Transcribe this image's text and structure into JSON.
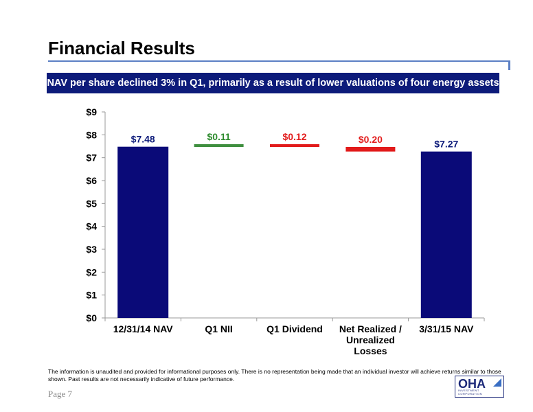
{
  "header": {
    "title": "Financial Results",
    "banner": "NAV per share declined 3% in Q1, primarily as a result of lower valuations of four energy assets"
  },
  "chart_data": {
    "type": "bar",
    "subtype": "waterfall",
    "categories": [
      "12/31/14 NAV",
      "Q1 NII",
      "Q1 Dividend",
      "Net Realized / Unrealized Losses",
      "3/31/15 NAV"
    ],
    "category_lines": [
      [
        "12/31/14 NAV"
      ],
      [
        "Q1 NII"
      ],
      [
        "Q1 Dividend"
      ],
      [
        "Net Realized /",
        "Unrealized",
        "Losses"
      ],
      [
        "3/31/15 NAV"
      ]
    ],
    "values": [
      7.48,
      0.11,
      -0.12,
      -0.2,
      7.27
    ],
    "data_labels": [
      "$7.48",
      "$0.11",
      "$0.12",
      "$0.20",
      "$7.27"
    ],
    "kinds": [
      "total",
      "increase",
      "decrease",
      "decrease",
      "total"
    ],
    "colors": {
      "total": "#0a0a78",
      "increase": "#3f8f3f",
      "decrease": "#e21b1b",
      "increase_label": "#2e8b2e",
      "decrease_label": "#e21b1b",
      "total_label": "#0d1b7a"
    },
    "ylim": [
      0,
      9
    ],
    "yticks": [
      0,
      1,
      2,
      3,
      4,
      5,
      6,
      7,
      8,
      9
    ],
    "ytick_labels": [
      "$0",
      "$1",
      "$2",
      "$3",
      "$4",
      "$5",
      "$6",
      "$7",
      "$8",
      "$9"
    ],
    "grid": false,
    "legend": "none"
  },
  "footer": {
    "disclaimer": "The information is unaudited and provided for informational purposes only. There is no representation being made that an individual investor will achieve returns similar to those shown. Past results are not necessarily indicative of future performance.",
    "page_label": "Page 7",
    "logo_text": "OHA",
    "logo_subtext": "INVESTMENT CORPORATION"
  }
}
